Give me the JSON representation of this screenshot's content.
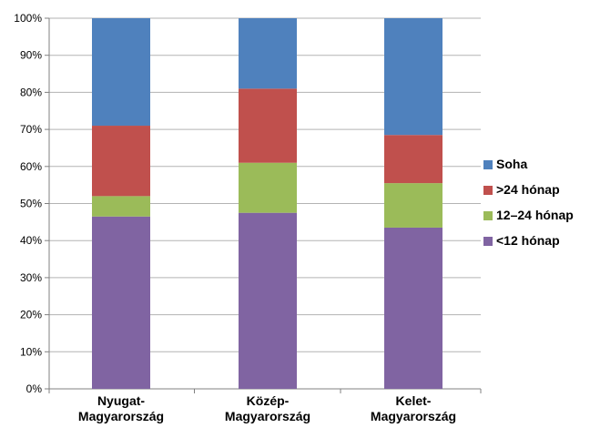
{
  "chart_data": {
    "type": "bar",
    "stacked": true,
    "categories": [
      [
        "Nyugat-",
        "Magyarország"
      ],
      [
        "Közép-",
        "Magyarország"
      ],
      [
        "Kelet-",
        "Magyarország"
      ]
    ],
    "series": [
      {
        "name": "<12 hónap",
        "color": "#8064a2",
        "values": [
          46.5,
          47.5,
          43.5
        ]
      },
      {
        "name": "12–24 hónap",
        "color": "#9bbb59",
        "values": [
          5.5,
          13.5,
          12.0
        ]
      },
      {
        "name": ">24 hónap",
        "color": "#c0504d",
        "values": [
          19.0,
          20.0,
          13.0
        ]
      },
      {
        "name": "Soha",
        "color": "#4f81bd",
        "values": [
          29.0,
          19.0,
          31.5
        ]
      }
    ],
    "ylim": [
      0,
      100
    ],
    "yticks": [
      "0%",
      "10%",
      "20%",
      "30%",
      "40%",
      "50%",
      "60%",
      "70%",
      "80%",
      "90%",
      "100%"
    ],
    "grid": true,
    "legend_position": "right",
    "legend_order": [
      "Soha",
      ">24 hónap",
      "12–24 hónap",
      "<12 hónap"
    ]
  }
}
